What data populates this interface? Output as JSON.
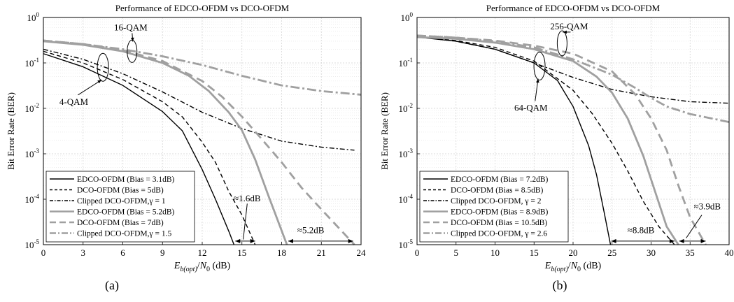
{
  "figure": {
    "captions": [
      "(a)",
      "(b)"
    ]
  },
  "chart_data": [
    {
      "type": "line",
      "title": "Performance of EDCO-OFDM vs DCO-OFDM",
      "xlabel": "E_{b(opt)}/N_0 (dB)",
      "ylabel": "Bit Error Rate (BER)",
      "xlim": [
        0,
        24
      ],
      "ylim_log10": [
        -5,
        0
      ],
      "yscale": "log",
      "xticks": [
        0,
        3,
        6,
        9,
        12,
        15,
        18,
        21,
        24
      ],
      "yticks": [
        "10^0",
        "10^-1",
        "10^-2",
        "10^-3",
        "10^-4",
        "10^-5"
      ],
      "grid": true,
      "legend_position": "bottom-left",
      "series": [
        {
          "name": "EDCO-OFDM (Bias = 3.1dB)",
          "color": "#000000",
          "style": "solid",
          "x": [
            0,
            3,
            6,
            9,
            10.5,
            12,
            13,
            14,
            14.4
          ],
          "y": [
            0.16,
            0.082,
            0.032,
            0.0085,
            0.0032,
            0.00045,
            0.0001,
            2e-05,
            1e-05
          ]
        },
        {
          "name": "DCO-OFDM (Bias = 5dB)",
          "color": "#000000",
          "style": "dashed",
          "x": [
            0,
            3,
            6,
            9,
            10.5,
            12,
            13,
            14,
            15,
            16
          ],
          "y": [
            0.18,
            0.1,
            0.043,
            0.014,
            0.0065,
            0.0018,
            0.00065,
            0.00015,
            4.5e-05,
            1e-05
          ]
        },
        {
          "name": "Clipped DCO-OFDM,γ = 1",
          "color": "#000000",
          "style": "dashdot",
          "x": [
            0,
            3,
            6,
            9,
            12,
            15,
            18,
            21,
            23.5
          ],
          "y": [
            0.2,
            0.12,
            0.058,
            0.023,
            0.0082,
            0.0036,
            0.0019,
            0.0014,
            0.0012
          ]
        },
        {
          "name": "EDCO-OFDM (Bias = 5.2dB)",
          "color": "#a0a0a0",
          "style": "solid",
          "x": [
            0,
            3,
            6,
            9,
            11,
            12.5,
            14,
            15,
            16,
            17,
            18.4
          ],
          "y": [
            0.3,
            0.25,
            0.18,
            0.1,
            0.052,
            0.024,
            0.0082,
            0.0033,
            0.00075,
            0.00012,
            1e-05
          ]
        },
        {
          "name": "DCO-OFDM (Bias = 7dB)",
          "color": "#a0a0a0",
          "style": "dashed",
          "x": [
            0,
            3,
            6,
            9,
            12,
            13.5,
            15,
            16.5,
            18,
            19.5,
            21,
            23.5
          ],
          "y": [
            0.31,
            0.26,
            0.19,
            0.11,
            0.04,
            0.018,
            0.0066,
            0.0021,
            0.00065,
            0.00018,
            6e-05,
            1e-05
          ]
        },
        {
          "name": "Clipped DCO-OFDM,γ = 1.5",
          "color": "#a0a0a0",
          "style": "dashdot",
          "x": [
            0,
            3,
            6,
            9,
            12,
            15,
            18,
            21,
            24
          ],
          "y": [
            0.31,
            0.26,
            0.2,
            0.14,
            0.09,
            0.052,
            0.032,
            0.024,
            0.02
          ]
        }
      ],
      "annotations": [
        {
          "text": "16-QAM",
          "x": 6.6,
          "y": 0.52
        },
        {
          "text": "4-QAM",
          "x": 2.3,
          "y": 0.012
        },
        {
          "text": "≈1.6dB",
          "x": 15.4,
          "y": 9e-05
        },
        {
          "text": "≈5.2dB",
          "x": 20.2,
          "y": 1.8e-05
        }
      ]
    },
    {
      "type": "line",
      "title": "Performance of EDCO-OFDM vs DCO-OFDM",
      "xlabel": "E_{b(opt)}/N_0 (dB)",
      "ylabel": "Bit Error Rate (BER)",
      "xlim": [
        0,
        40
      ],
      "ylim_log10": [
        -5,
        0
      ],
      "yscale": "log",
      "xticks": [
        0,
        5,
        10,
        15,
        20,
        25,
        30,
        35,
        40
      ],
      "yticks": [
        "10^0",
        "10^-1",
        "10^-2",
        "10^-3",
        "10^-4",
        "10^-5"
      ],
      "grid": true,
      "legend_position": "bottom-left",
      "series": [
        {
          "name": "EDCO-OFDM (Bias = 7.2dB)",
          "color": "#000000",
          "style": "solid",
          "x": [
            0,
            5,
            10,
            15,
            18,
            20,
            22,
            23,
            24,
            24.8
          ],
          "y": [
            0.37,
            0.3,
            0.2,
            0.1,
            0.041,
            0.011,
            0.0015,
            0.00035,
            5e-05,
            1e-05
          ]
        },
        {
          "name": "DCO-OFDM (Bias = 8.5dB)",
          "color": "#000000",
          "style": "dashed",
          "x": [
            0,
            5,
            10,
            15,
            20,
            22.5,
            25,
            27,
            29,
            31,
            33
          ],
          "y": [
            0.38,
            0.31,
            0.22,
            0.11,
            0.025,
            0.0075,
            0.0017,
            0.00042,
            9e-05,
            2.5e-05,
            1e-05
          ]
        },
        {
          "name": "Clipped DCO-OFDM, γ = 2",
          "color": "#000000",
          "style": "dashdot",
          "x": [
            0,
            5,
            10,
            15,
            20,
            25,
            30,
            35,
            40
          ],
          "y": [
            0.38,
            0.3,
            0.2,
            0.1,
            0.048,
            0.026,
            0.018,
            0.014,
            0.013
          ]
        },
        {
          "name": "EDCO-OFDM (Bias = 8.9dB)",
          "color": "#a0a0a0",
          "style": "solid",
          "x": [
            0,
            5,
            10,
            15,
            20,
            23,
            25,
            27,
            29,
            30.5,
            32,
            33.5
          ],
          "y": [
            0.37,
            0.34,
            0.28,
            0.2,
            0.11,
            0.05,
            0.022,
            0.006,
            0.0009,
            0.00015,
            2.5e-05,
            1e-05
          ]
        },
        {
          "name": "DCO-OFDM (Bias = 10.5dB)",
          "color": "#a0a0a0",
          "style": "dashed",
          "x": [
            0,
            5,
            10,
            15,
            20,
            25,
            28,
            30,
            32,
            33.5,
            35,
            37
          ],
          "y": [
            0.4,
            0.36,
            0.31,
            0.24,
            0.16,
            0.065,
            0.02,
            0.006,
            0.0012,
            0.0002,
            4e-05,
            1e-05
          ]
        },
        {
          "name": "Clipped DCO-OFDM, γ = 2.6",
          "color": "#a0a0a0",
          "style": "dashdot",
          "x": [
            0,
            5,
            10,
            15,
            20,
            25,
            28,
            30,
            32,
            35,
            40
          ],
          "y": [
            0.4,
            0.36,
            0.3,
            0.22,
            0.12,
            0.055,
            0.028,
            0.017,
            0.011,
            0.0075,
            0.005
          ]
        }
      ],
      "annotations": [
        {
          "text": "256-QAM",
          "x": 19.5,
          "y": 0.55
        },
        {
          "text": "64-QAM",
          "x": 14.6,
          "y": 0.0088
        },
        {
          "text": "≈3.9dB",
          "x": 37.2,
          "y": 6e-05
        },
        {
          "text": "≈8.8dB",
          "x": 28.7,
          "y": 1.8e-05
        }
      ]
    }
  ]
}
